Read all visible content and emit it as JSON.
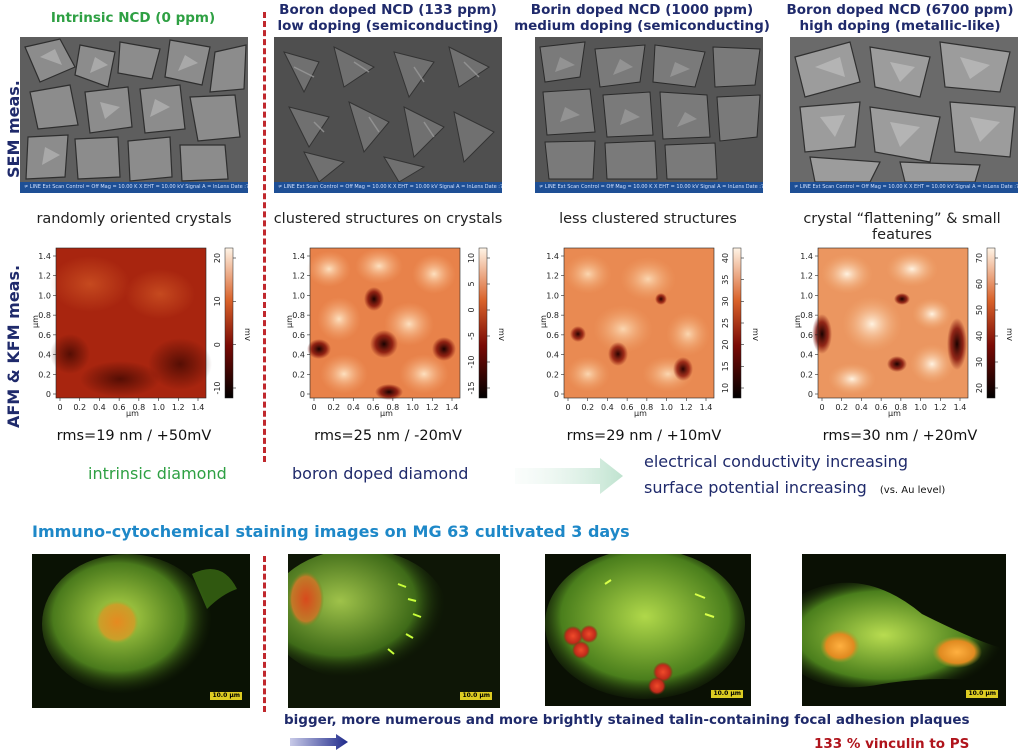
{
  "columns": [
    {
      "title_line1": "Intrinsic NCD (0 ppm)",
      "title_line2": "",
      "caption": "randomly oriented crystals",
      "rms": "rms=19 nm / +50mV",
      "scale": {
        "ticks": [
          "20",
          "10",
          "0",
          "-10"
        ],
        "unit": "mV"
      }
    },
    {
      "title_line1": "Boron doped NCD (133 ppm)",
      "title_line2": "low doping (semiconducting)",
      "caption": "clustered structures on crystals",
      "rms": "rms=25 nm / -20mV",
      "scale": {
        "ticks": [
          "10",
          "5",
          "0",
          "-5",
          "-10",
          "-15"
        ],
        "unit": "mV"
      }
    },
    {
      "title_line1": "Borin doped NCD (1000 ppm)",
      "title_line2": "medium doping (semiconducting)",
      "caption": "less clustered structures",
      "rms": "rms=29 nm / +10mV",
      "scale": {
        "ticks": [
          "40",
          "35",
          "30",
          "25",
          "20",
          "15",
          "10"
        ],
        "unit": "mV"
      }
    },
    {
      "title_line1": "Boron doped NCD (6700 ppm)",
      "title_line2": "high doping (metallic-like)",
      "caption": "crystal “flattening” & small features",
      "rms": "rms=30 nm / +20mV",
      "scale": {
        "ticks": [
          "70",
          "60",
          "50",
          "40",
          "30",
          "20"
        ],
        "unit": "mV"
      }
    }
  ],
  "side_labels": {
    "sem": "SEM meas.",
    "afm": "AFM & KFM meas."
  },
  "afm_axes": {
    "x_ticks": [
      "0",
      "0.2",
      "0.4",
      "0.6",
      "0.8",
      "1.0",
      "1.2",
      "1.4"
    ],
    "y_ticks": [
      "0",
      "0.2",
      "0.4",
      "0.6",
      "0.8",
      "1.0",
      "1.2",
      "1.4"
    ],
    "unit": "µm"
  },
  "sem_bar_text": "≠ LINE   Ext Scan Control = Off   Mag = 10.00 K X   EHT = 10.00 kV   Signal A = InLens   Date :7 Apr 2009",
  "legend": {
    "intrinsic": "intrinsic diamond",
    "boron": "boron doped diamond",
    "conductivity": "electrical conductivity increasing",
    "potential": "surface potential increasing",
    "potential_note": "(vs. Au level)"
  },
  "staining": {
    "title": "Immuno-cytochemical staining images on MG 63 cultivated 3 days",
    "scalebar_label": "10.0 µm",
    "conclusion": "bigger, more numerous and more brightly stained talin-containing focal adhesion plaques",
    "vinculin": "133 % vinculin to PS"
  },
  "colors": {
    "title_blue": "#1f2a6b",
    "intrinsic_green": "#2ea043",
    "staining_title": "#1e88c8",
    "divider_red": "#c0282d",
    "vinculin_red": "#b0141c"
  }
}
